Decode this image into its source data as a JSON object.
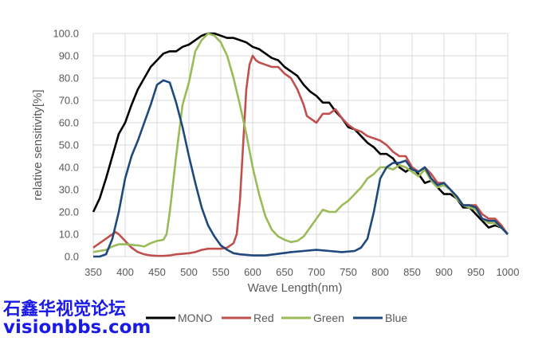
{
  "chart_data": {
    "type": "line",
    "title": "",
    "xlabel": "Wave Length(nm)",
    "ylabel": "relative sensitivity[%]",
    "xlim": [
      350,
      1000
    ],
    "ylim": [
      0,
      100
    ],
    "x_ticks": [
      "350",
      "400",
      "450",
      "500",
      "550",
      "600",
      "650",
      "700",
      "750",
      "800",
      "850",
      "900",
      "950",
      "1000"
    ],
    "y_ticks": [
      "0.0",
      "10.0",
      "20.0",
      "30.0",
      "40.0",
      "50.0",
      "60.0",
      "70.0",
      "80.0",
      "90.0",
      "100.0"
    ],
    "grid": true,
    "legend_position": "bottom",
    "series": [
      {
        "name": "MONO",
        "color": "#000000",
        "x": [
          350,
          360,
          370,
          380,
          390,
          400,
          410,
          420,
          430,
          440,
          450,
          460,
          470,
          480,
          490,
          500,
          510,
          520,
          530,
          540,
          550,
          560,
          570,
          580,
          590,
          600,
          610,
          620,
          630,
          640,
          650,
          660,
          670,
          680,
          690,
          700,
          710,
          720,
          730,
          740,
          750,
          760,
          770,
          780,
          790,
          800,
          810,
          820,
          830,
          840,
          850,
          860,
          870,
          880,
          890,
          900,
          910,
          920,
          930,
          940,
          950,
          960,
          970,
          980,
          990,
          1000
        ],
        "y": [
          20,
          26,
          35,
          45,
          55,
          60,
          68,
          75,
          80,
          85,
          88,
          91,
          92,
          92,
          94,
          95,
          97,
          99,
          100,
          100,
          99,
          98,
          98,
          97,
          96,
          94,
          93,
          91,
          89,
          88,
          85,
          83,
          81,
          77,
          74,
          72,
          69,
          69,
          65,
          62,
          58,
          57,
          54,
          51,
          49,
          46,
          46,
          44,
          40,
          38,
          40,
          37,
          33,
          34,
          31,
          28,
          28,
          26,
          22,
          22,
          19,
          16,
          13,
          14,
          13,
          10
        ]
      },
      {
        "name": "Red",
        "color": "#c0504d",
        "x": [
          350,
          360,
          370,
          380,
          385,
          390,
          400,
          410,
          420,
          430,
          440,
          450,
          460,
          470,
          480,
          490,
          500,
          510,
          520,
          530,
          540,
          550,
          560,
          570,
          575,
          580,
          585,
          590,
          595,
          600,
          605,
          610,
          620,
          630,
          640,
          650,
          660,
          670,
          680,
          685,
          690,
          700,
          710,
          720,
          730,
          740,
          750,
          760,
          770,
          780,
          790,
          800,
          810,
          820,
          830,
          840,
          850,
          860,
          870,
          880,
          890,
          900,
          910,
          920,
          930,
          940,
          950,
          960,
          970,
          980,
          990,
          1000
        ],
        "y": [
          4,
          6,
          8,
          10,
          11,
          10,
          7,
          4,
          2,
          1,
          0.5,
          0.3,
          0.3,
          0.5,
          1,
          1.2,
          1.5,
          2,
          3,
          3.5,
          3.5,
          3.5,
          4,
          6,
          10,
          25,
          50,
          75,
          86,
          90,
          88,
          87,
          86,
          85,
          85,
          82,
          80,
          75,
          68,
          63,
          62,
          60,
          64,
          64,
          66,
          62,
          59,
          57,
          56,
          54,
          53,
          52,
          50,
          47,
          45,
          45,
          40,
          38,
          40,
          37,
          33,
          33,
          30,
          27,
          23,
          23,
          23,
          19,
          17,
          17,
          14,
          10
        ]
      },
      {
        "name": "Green",
        "color": "#9bbb59",
        "x": [
          350,
          370,
          380,
          390,
          400,
          420,
          430,
          440,
          450,
          460,
          465,
          470,
          480,
          490,
          500,
          510,
          520,
          530,
          540,
          550,
          560,
          570,
          580,
          590,
          600,
          610,
          620,
          630,
          640,
          650,
          660,
          670,
          680,
          690,
          700,
          710,
          720,
          730,
          740,
          750,
          760,
          770,
          780,
          790,
          800,
          810,
          820,
          830,
          840,
          850,
          860,
          870,
          880,
          890,
          900,
          910,
          920,
          930,
          940,
          950,
          960,
          970,
          980,
          990,
          1000
        ],
        "y": [
          2,
          3,
          4.5,
          5.5,
          5.5,
          5,
          4.5,
          6,
          7,
          7.5,
          10,
          20,
          45,
          68,
          78,
          92,
          97,
          100,
          99,
          96,
          90,
          80,
          68,
          55,
          40,
          28,
          18,
          12,
          9,
          7.5,
          6.5,
          7,
          9,
          13,
          17,
          21,
          20,
          20,
          23,
          25,
          28,
          31,
          35,
          37,
          40,
          40,
          39,
          41,
          40,
          38,
          36,
          39,
          34,
          31,
          32,
          30,
          26,
          23,
          22,
          21,
          17,
          15,
          15,
          13,
          10
        ]
      },
      {
        "name": "Blue",
        "color": "#1f497d",
        "x": [
          350,
          360,
          370,
          380,
          390,
          400,
          410,
          420,
          430,
          440,
          450,
          460,
          470,
          480,
          490,
          500,
          510,
          520,
          530,
          540,
          550,
          560,
          570,
          580,
          600,
          620,
          640,
          660,
          680,
          700,
          720,
          740,
          760,
          770,
          780,
          790,
          800,
          810,
          820,
          830,
          840,
          850,
          860,
          870,
          880,
          890,
          900,
          910,
          920,
          930,
          940,
          950,
          960,
          970,
          980,
          990,
          1000
        ],
        "y": [
          0,
          0,
          1,
          8,
          20,
          35,
          45,
          52,
          60,
          68,
          77,
          79,
          78,
          69,
          58,
          45,
          33,
          22,
          14,
          9,
          5,
          3,
          1.5,
          1,
          0.5,
          0.5,
          1.2,
          2,
          2.5,
          3,
          2.5,
          2,
          2.5,
          4,
          8,
          20,
          35,
          40,
          42,
          42,
          43,
          39,
          38,
          40,
          35,
          32,
          33,
          30,
          27,
          23,
          23,
          22,
          17,
          16,
          16,
          13,
          10
        ]
      }
    ]
  },
  "watermark": {
    "line1": "石鑫华视觉论坛",
    "line2": "visionbbs.com"
  }
}
